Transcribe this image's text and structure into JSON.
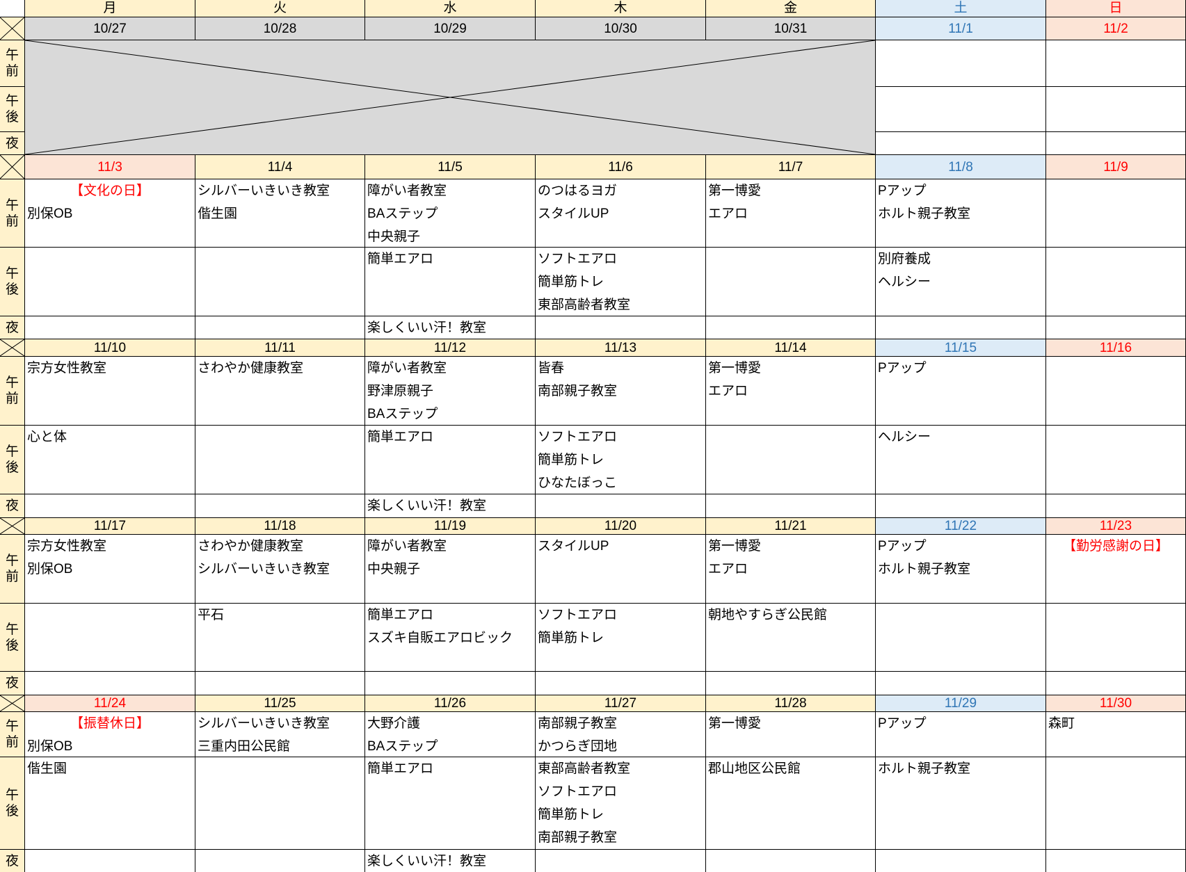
{
  "corner": "",
  "weekdays": [
    "月",
    "火",
    "水",
    "木",
    "金",
    "土",
    "日"
  ],
  "slots": {
    "am": "午前",
    "pm": "午後",
    "night": "夜"
  },
  "colors": {
    "header": "#FFF2CC",
    "past": "#D9D9D9",
    "saturday_bg": "#DDEBF7",
    "saturday_text": "#2F75B5",
    "holiday_bg": "#FCE4D6",
    "holiday_text": "#FF0000"
  },
  "weeks": [
    {
      "dates": [
        {
          "label": "10/27",
          "type": "past"
        },
        {
          "label": "10/28",
          "type": "past"
        },
        {
          "label": "10/29",
          "type": "past"
        },
        {
          "label": "10/30",
          "type": "past"
        },
        {
          "label": "10/31",
          "type": "past"
        },
        {
          "label": "11/1",
          "type": "sat"
        },
        {
          "label": "11/2",
          "type": "sun"
        }
      ],
      "crossed_out_days": 5,
      "am": [
        [],
        [],
        [],
        [],
        [],
        [],
        []
      ],
      "pm": [
        [],
        [],
        [],
        [],
        [],
        [],
        []
      ],
      "night": [
        [],
        [],
        [],
        [],
        [],
        [],
        []
      ]
    },
    {
      "dates": [
        {
          "label": "11/3",
          "type": "sun"
        },
        {
          "label": "11/4",
          "type": "wk"
        },
        {
          "label": "11/5",
          "type": "wk"
        },
        {
          "label": "11/6",
          "type": "wk"
        },
        {
          "label": "11/7",
          "type": "wk"
        },
        {
          "label": "11/8",
          "type": "sat"
        },
        {
          "label": "11/9",
          "type": "sun"
        }
      ],
      "am": [
        [
          "【文化の日】",
          "別保OB"
        ],
        [
          "シルバーいきいき教室",
          "偕生園"
        ],
        [
          "障がい者教室",
          "BAステップ",
          "中央親子"
        ],
        [
          "のつはるヨガ",
          "スタイルUP"
        ],
        [
          "第一博愛",
          "エアロ"
        ],
        [
          "Pアップ",
          "ホルト親子教室"
        ],
        []
      ],
      "pm": [
        [],
        [],
        [
          "簡単エアロ"
        ],
        [
          "ソフトエアロ",
          "簡単筋トレ",
          "東部高齢者教室"
        ],
        [],
        [
          "別府養成",
          "ヘルシー"
        ],
        []
      ],
      "night": [
        [],
        [],
        [
          "楽しくいい汗！教室"
        ],
        [],
        [],
        [],
        []
      ]
    },
    {
      "dates": [
        {
          "label": "11/10",
          "type": "wk"
        },
        {
          "label": "11/11",
          "type": "wk"
        },
        {
          "label": "11/12",
          "type": "wk"
        },
        {
          "label": "11/13",
          "type": "wk"
        },
        {
          "label": "11/14",
          "type": "wk"
        },
        {
          "label": "11/15",
          "type": "sat"
        },
        {
          "label": "11/16",
          "type": "sun"
        }
      ],
      "am": [
        [
          "宗方女性教室"
        ],
        [
          "さわやか健康教室"
        ],
        [
          "障がい者教室",
          "野津原親子",
          "BAステップ"
        ],
        [
          "皆春",
          "南部親子教室"
        ],
        [
          "第一博愛",
          "エアロ"
        ],
        [
          "Pアップ"
        ],
        []
      ],
      "pm": [
        [
          "心と体"
        ],
        [],
        [
          "簡単エアロ"
        ],
        [
          "ソフトエアロ",
          "簡単筋トレ",
          "ひなたぼっこ"
        ],
        [],
        [
          "ヘルシー"
        ],
        []
      ],
      "night": [
        [],
        [],
        [
          "楽しくいい汗！教室"
        ],
        [],
        [],
        [],
        []
      ]
    },
    {
      "dates": [
        {
          "label": "11/17",
          "type": "wk"
        },
        {
          "label": "11/18",
          "type": "wk"
        },
        {
          "label": "11/19",
          "type": "wk"
        },
        {
          "label": "11/20",
          "type": "wk"
        },
        {
          "label": "11/21",
          "type": "wk"
        },
        {
          "label": "11/22",
          "type": "sat"
        },
        {
          "label": "11/23",
          "type": "sun"
        }
      ],
      "am": [
        [
          "宗方女性教室",
          "別保OB"
        ],
        [
          "さわやか健康教室",
          "シルバーいきいき教室"
        ],
        [
          "障がい者教室",
          "中央親子"
        ],
        [
          "スタイルUP"
        ],
        [
          "第一博愛",
          "エアロ"
        ],
        [
          "Pアップ",
          "ホルト親子教室"
        ],
        [
          "【勤労感謝の日】"
        ]
      ],
      "pm": [
        [],
        [
          "平石"
        ],
        [
          "簡単エアロ",
          "スズキ自販エアロビック"
        ],
        [
          "ソフトエアロ",
          "簡単筋トレ"
        ],
        [
          "朝地やすらぎ公民館"
        ],
        [],
        []
      ],
      "night": [
        [],
        [],
        [],
        [],
        [],
        [],
        []
      ]
    },
    {
      "dates": [
        {
          "label": "11/24",
          "type": "sun"
        },
        {
          "label": "11/25",
          "type": "wk"
        },
        {
          "label": "11/26",
          "type": "wk"
        },
        {
          "label": "11/27",
          "type": "wk"
        },
        {
          "label": "11/28",
          "type": "wk"
        },
        {
          "label": "11/29",
          "type": "sat"
        },
        {
          "label": "11/30",
          "type": "sun"
        }
      ],
      "am": [
        [
          "【振替休日】",
          "別保OB"
        ],
        [
          "シルバーいきいき教室",
          "三重内田公民館"
        ],
        [
          "大野介護",
          "BAステップ"
        ],
        [
          "南部親子教室",
          "かつらぎ団地"
        ],
        [
          "第一博愛"
        ],
        [
          "Pアップ"
        ],
        [
          "森町"
        ]
      ],
      "pm": [
        [
          "偕生園"
        ],
        [],
        [
          "簡単エアロ"
        ],
        [
          "東部高齢者教室",
          "ソフトエアロ",
          "簡単筋トレ",
          "南部親子教室"
        ],
        [
          "郡山地区公民館"
        ],
        [
          "ホルト親子教室"
        ],
        []
      ],
      "night": [
        [],
        [],
        [
          "楽しくいい汗！教室"
        ],
        [],
        [],
        [],
        []
      ]
    }
  ]
}
